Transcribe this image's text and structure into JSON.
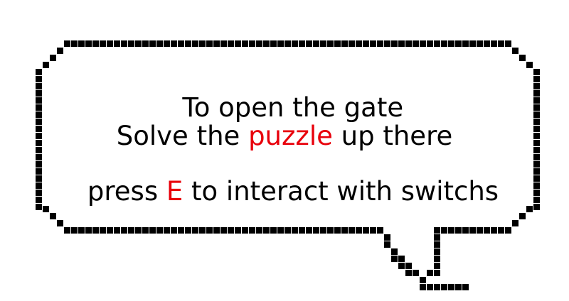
{
  "dialog": {
    "line1": {
      "text": "To open the gate"
    },
    "line2": {
      "before": "Solve the ",
      "highlight": "puzzle",
      "after": " up there"
    },
    "line3": {
      "before": "press ",
      "highlight": "E",
      "after": " to interact with switchs"
    }
  },
  "colors": {
    "text": "#000000",
    "highlight": "#e8000b",
    "border": "#000000",
    "background": "#ffffff"
  }
}
